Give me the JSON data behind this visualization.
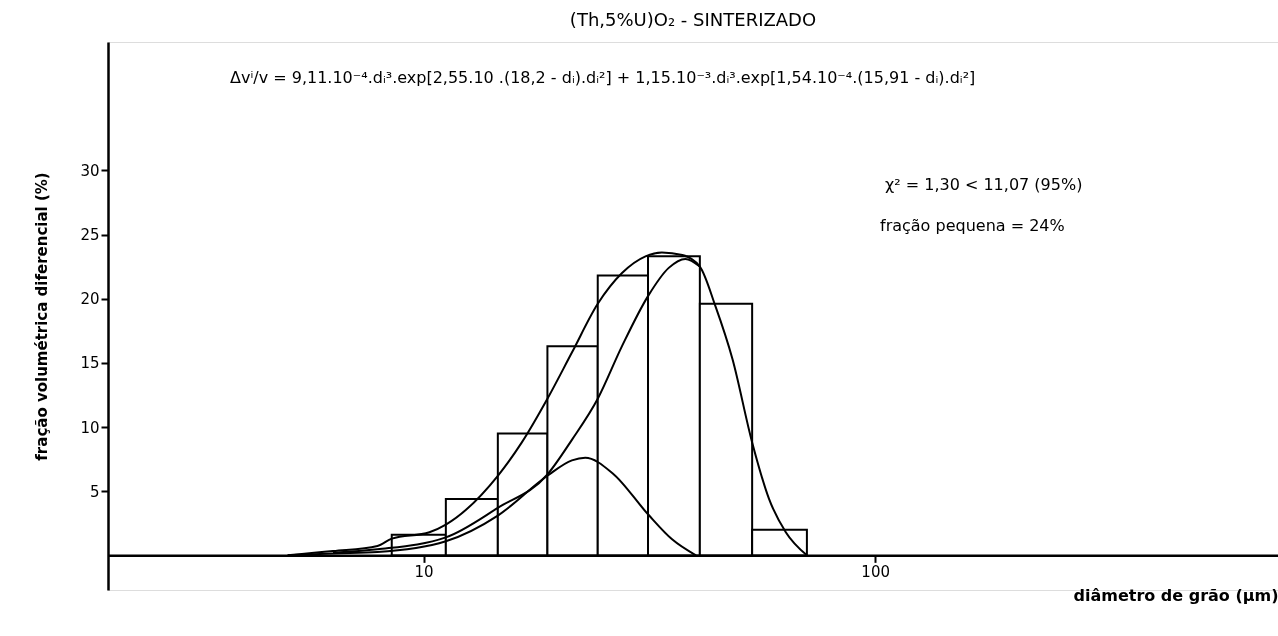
{
  "chart_data": {
    "type": "histogram",
    "title": "(Th,5%U)O₂ - SINTERIZADO",
    "xlabel": "diâmetro de grão (μm)",
    "ylabel": "fração volumétrica diferencial (%)",
    "bins": [
      8.5,
      11.2,
      14.6,
      18.8,
      24.3,
      31.4,
      40.9,
      53.4,
      70.6
    ],
    "values": [
      1.6,
      4.4,
      9.5,
      16.3,
      21.8,
      23.3,
      19.6,
      2.0
    ],
    "series": [
      {
        "type": "line",
        "color": "#000000",
        "x": [
          5.0,
          6.3,
          7.9,
          8.5,
          10.3,
          11.2,
          14.6,
          16.5,
          18.8,
          21.3,
          24.3,
          27.5,
          31.0,
          33.7,
          37.4,
          40.9,
          44.3,
          48.3,
          53.4,
          58.2,
          63.4,
          70.6
        ],
        "values": [
          0,
          0.33,
          0.73,
          1.3,
          1.8,
          2.4,
          6.2,
          8.8,
          12.2,
          15.8,
          19.6,
          22.0,
          23.3,
          23.6,
          23.4,
          22.5,
          19.4,
          15.3,
          8.8,
          4.4,
          1.8,
          0
        ]
      },
      {
        "type": "line",
        "color": "#000000",
        "x": [
          6.3,
          7.9,
          11.2,
          14.6,
          18.8,
          21.3,
          24.3,
          27.5,
          31.4,
          34.9,
          38.0,
          40.9
        ],
        "values": [
          0.2,
          0.47,
          1.4,
          3.7,
          6.3,
          9.0,
          12.2,
          16.3,
          20.2,
          22.4,
          23.1,
          22.5
        ]
      },
      {
        "type": "line",
        "color": "#000000",
        "x": [
          5.0,
          6.3,
          7.9,
          11.2,
          14.6,
          18.8,
          21.3,
          22.8,
          26.2,
          31.4,
          35.5,
          40.1
        ],
        "values": [
          0,
          0.15,
          0.26,
          1.1,
          3.1,
          6.2,
          7.4,
          7.6,
          6.4,
          3.2,
          1.25,
          0
        ]
      }
    ],
    "annotations": [
      "Δvⁱ/v = 9,11.10⁻⁴.dᵢ³.exp[2,55.10 .(18,2 - dᵢ).dᵢ²] + 1,15.10⁻³.dᵢ³.exp[1,54.10⁻⁴.(15,91 - dᵢ).dᵢ²]",
      "χ² = 1,30 < 11,07 (95%)",
      "fração pequena = 24%"
    ],
    "log": "x",
    "xlim": [
      2,
      780
    ],
    "xticks": [
      10,
      100
    ],
    "ylim": [
      -2.7,
      40
    ],
    "yticks": [
      5,
      10,
      15,
      20,
      25,
      30
    ],
    "marker": "none",
    "line_style": "solid"
  }
}
